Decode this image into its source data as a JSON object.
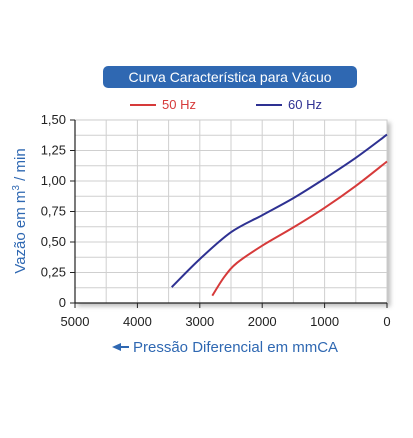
{
  "chart_data": {
    "type": "line",
    "title": "Curva Característica para Vácuo",
    "xlabel": "Pressão Diferencial em mmCA",
    "ylabel_prefix": "Vazão em m",
    "ylabel_sup": "3",
    "ylabel_suffix": " / min",
    "x_reversed": true,
    "xlim": [
      0,
      5000
    ],
    "ylim": [
      0,
      1.5
    ],
    "x_ticks": [
      5000,
      4000,
      3000,
      2000,
      1000,
      0
    ],
    "x_tick_labels": [
      "5000",
      "4000",
      "3000",
      "2000",
      "1000",
      "0"
    ],
    "y_ticks": [
      0,
      0.25,
      0.5,
      0.75,
      1.0,
      1.25,
      1.5
    ],
    "y_tick_labels": [
      "0",
      "0,25",
      "0,50",
      "0,75",
      "1,00",
      "1,25",
      "1,50"
    ],
    "grid": true,
    "legend_position": "top",
    "series": [
      {
        "name": "50 Hz",
        "color": "#d63a3a",
        "points": [
          [
            2800,
            0.06
          ],
          [
            2600,
            0.22
          ],
          [
            2400,
            0.33
          ],
          [
            2000,
            0.47
          ],
          [
            1500,
            0.62
          ],
          [
            1000,
            0.78
          ],
          [
            500,
            0.96
          ],
          [
            0,
            1.16
          ]
        ]
      },
      {
        "name": "60 Hz",
        "color": "#2e3192",
        "points": [
          [
            3450,
            0.13
          ],
          [
            3000,
            0.36
          ],
          [
            2500,
            0.58
          ],
          [
            2000,
            0.72
          ],
          [
            1500,
            0.86
          ],
          [
            1000,
            1.02
          ],
          [
            500,
            1.19
          ],
          [
            0,
            1.38
          ]
        ]
      }
    ]
  }
}
